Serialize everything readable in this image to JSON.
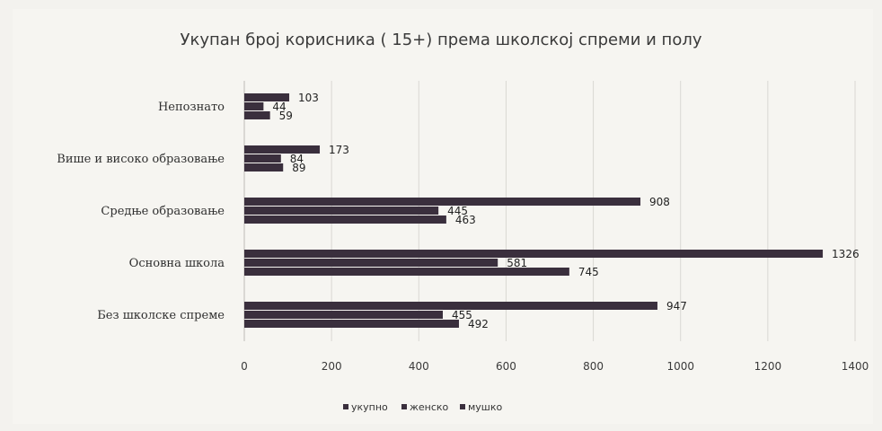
{
  "chart_data": {
    "type": "bar",
    "orientation": "horizontal",
    "title": "Укупан број корисника ( 15+) према школској спреми и полу",
    "categories": [
      "Непознато",
      "Више и високо образовање",
      "Средње образовање",
      "Основна школа",
      "Без школске спреме"
    ],
    "series": [
      {
        "name": "укупно",
        "values": [
          103,
          173,
          908,
          1326,
          947
        ],
        "color": "#3a2f3d"
      },
      {
        "name": "женско",
        "values": [
          44,
          84,
          445,
          581,
          455
        ],
        "color": "#3a2f3d"
      },
      {
        "name": "мушко",
        "values": [
          59,
          89,
          463,
          745,
          492
        ],
        "color": "#3a2f3d"
      }
    ],
    "value_labels": [
      [
        "103",
        "44",
        "59"
      ],
      [
        "173",
        "84",
        "89"
      ],
      [
        "908",
        "445",
        "463"
      ],
      [
        "1326",
        "581",
        "745"
      ],
      [
        "947",
        "455",
        "492"
      ]
    ],
    "xlim": [
      0,
      1400
    ],
    "xticks": [
      "0",
      "200",
      "400",
      "600",
      "800",
      "1000",
      "1200",
      "1400"
    ],
    "grid": true,
    "legend_position": "bottom"
  }
}
